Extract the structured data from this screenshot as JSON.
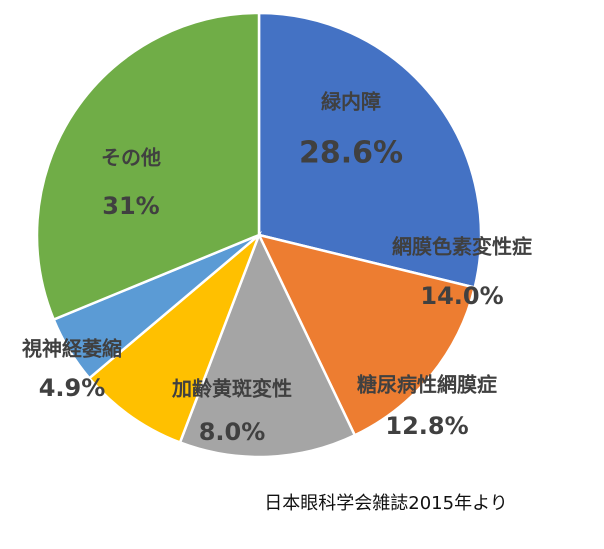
{
  "chart_data": {
    "type": "pie",
    "categories": [
      "緑内障",
      "網膜色素変性症",
      "糖尿病性網膜症",
      "加齢黄斑変性",
      "視神経萎縮",
      "その他"
    ],
    "values": [
      28.6,
      14.0,
      12.8,
      8.0,
      4.9,
      31
    ],
    "value_labels": [
      "28.6%",
      "14.0%",
      "12.8%",
      "8.0%",
      "4.9%",
      "31%"
    ],
    "colors": [
      "#4472C4",
      "#ED7D31",
      "#A5A5A5",
      "#FFC000",
      "#5B9BD5",
      "#70AD47"
    ],
    "start_angle": "12 o'clock, clockwise",
    "legend": "none",
    "annotation": "日本眼科学会雑誌2015年より"
  }
}
